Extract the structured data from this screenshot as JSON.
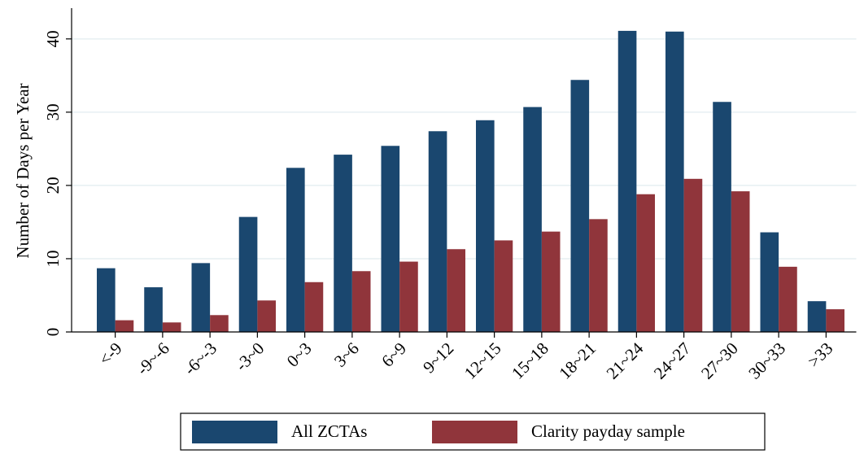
{
  "chart_data": {
    "type": "bar",
    "ylabel": "Number of Days per Year",
    "categories": [
      "<-9",
      "-9~-6",
      "-6~-3",
      "-3~0",
      "0~3",
      "3~6",
      "6~9",
      "9~12",
      "12~15",
      "15~18",
      "18~21",
      "21~24",
      "24~27",
      "27~30",
      "30~33",
      ">33"
    ],
    "series": [
      {
        "name": "All ZCTAs",
        "color": "#1a476f",
        "values": [
          8.7,
          6.1,
          9.4,
          15.7,
          22.4,
          24.2,
          25.4,
          27.4,
          28.9,
          30.7,
          34.4,
          41.1,
          41,
          31.4,
          13.6,
          4.2
        ]
      },
      {
        "name": "Clarity payday sample",
        "color": "#90353b",
        "values": [
          1.6,
          1.3,
          2.3,
          4.3,
          6.8,
          8.3,
          9.6,
          11.3,
          12.5,
          13.7,
          15.4,
          18.8,
          20.9,
          19.2,
          8.9,
          3.1
        ]
      }
    ],
    "ylim": [
      0,
      44.2
    ],
    "yticks": [
      0,
      10,
      20,
      30,
      40
    ],
    "grid": true,
    "legend": "bottom"
  }
}
